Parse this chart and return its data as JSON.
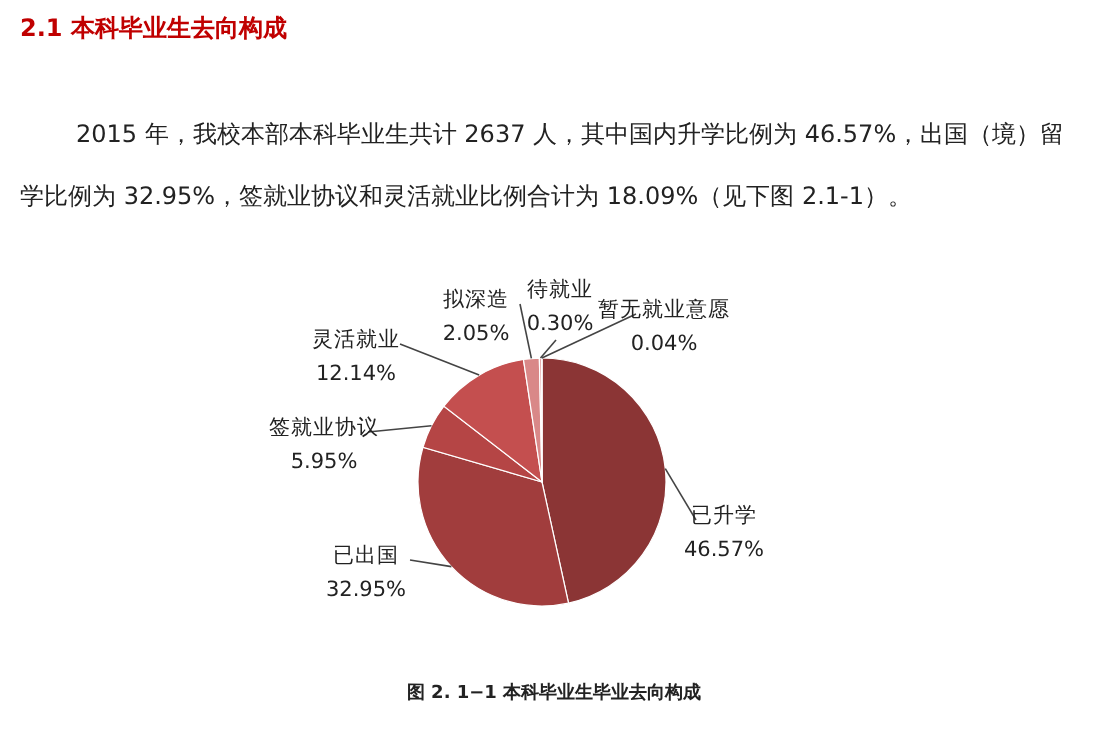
{
  "chart_data": {
    "type": "pie",
    "title": "2.1  本科毕业生去向构成",
    "subtitle": [
      "2015 年，我校本部本科毕业生共计 2637 人，其中国内升学比例为 46.57%，出国（境）留",
      "学比例为 32.95%，签就业协议和灵活就业比例合计为 18.09%（见下图 2.1-1）。"
    ],
    "categories": [
      "已升学",
      "已出国",
      "签就业协议",
      "灵活就业",
      "拟深造",
      "待就业",
      "暂无就业意愿"
    ],
    "values": [
      46.57,
      32.95,
      5.95,
      12.14,
      2.05,
      0.3,
      0.04
    ],
    "value_labels": [
      "46.57%",
      "32.95%",
      "5.95%",
      "12.14%",
      "2.05%",
      "0.30%",
      "0.04%"
    ],
    "colors": [
      "#8b3535",
      "#a13d3d",
      "#b54545",
      "#c44f4f",
      "#d98888",
      "#e6aaaa",
      "#f0cccc"
    ],
    "annotations": [
      "图 2. 1−1  本科毕业生毕业去向构成"
    ]
  }
}
